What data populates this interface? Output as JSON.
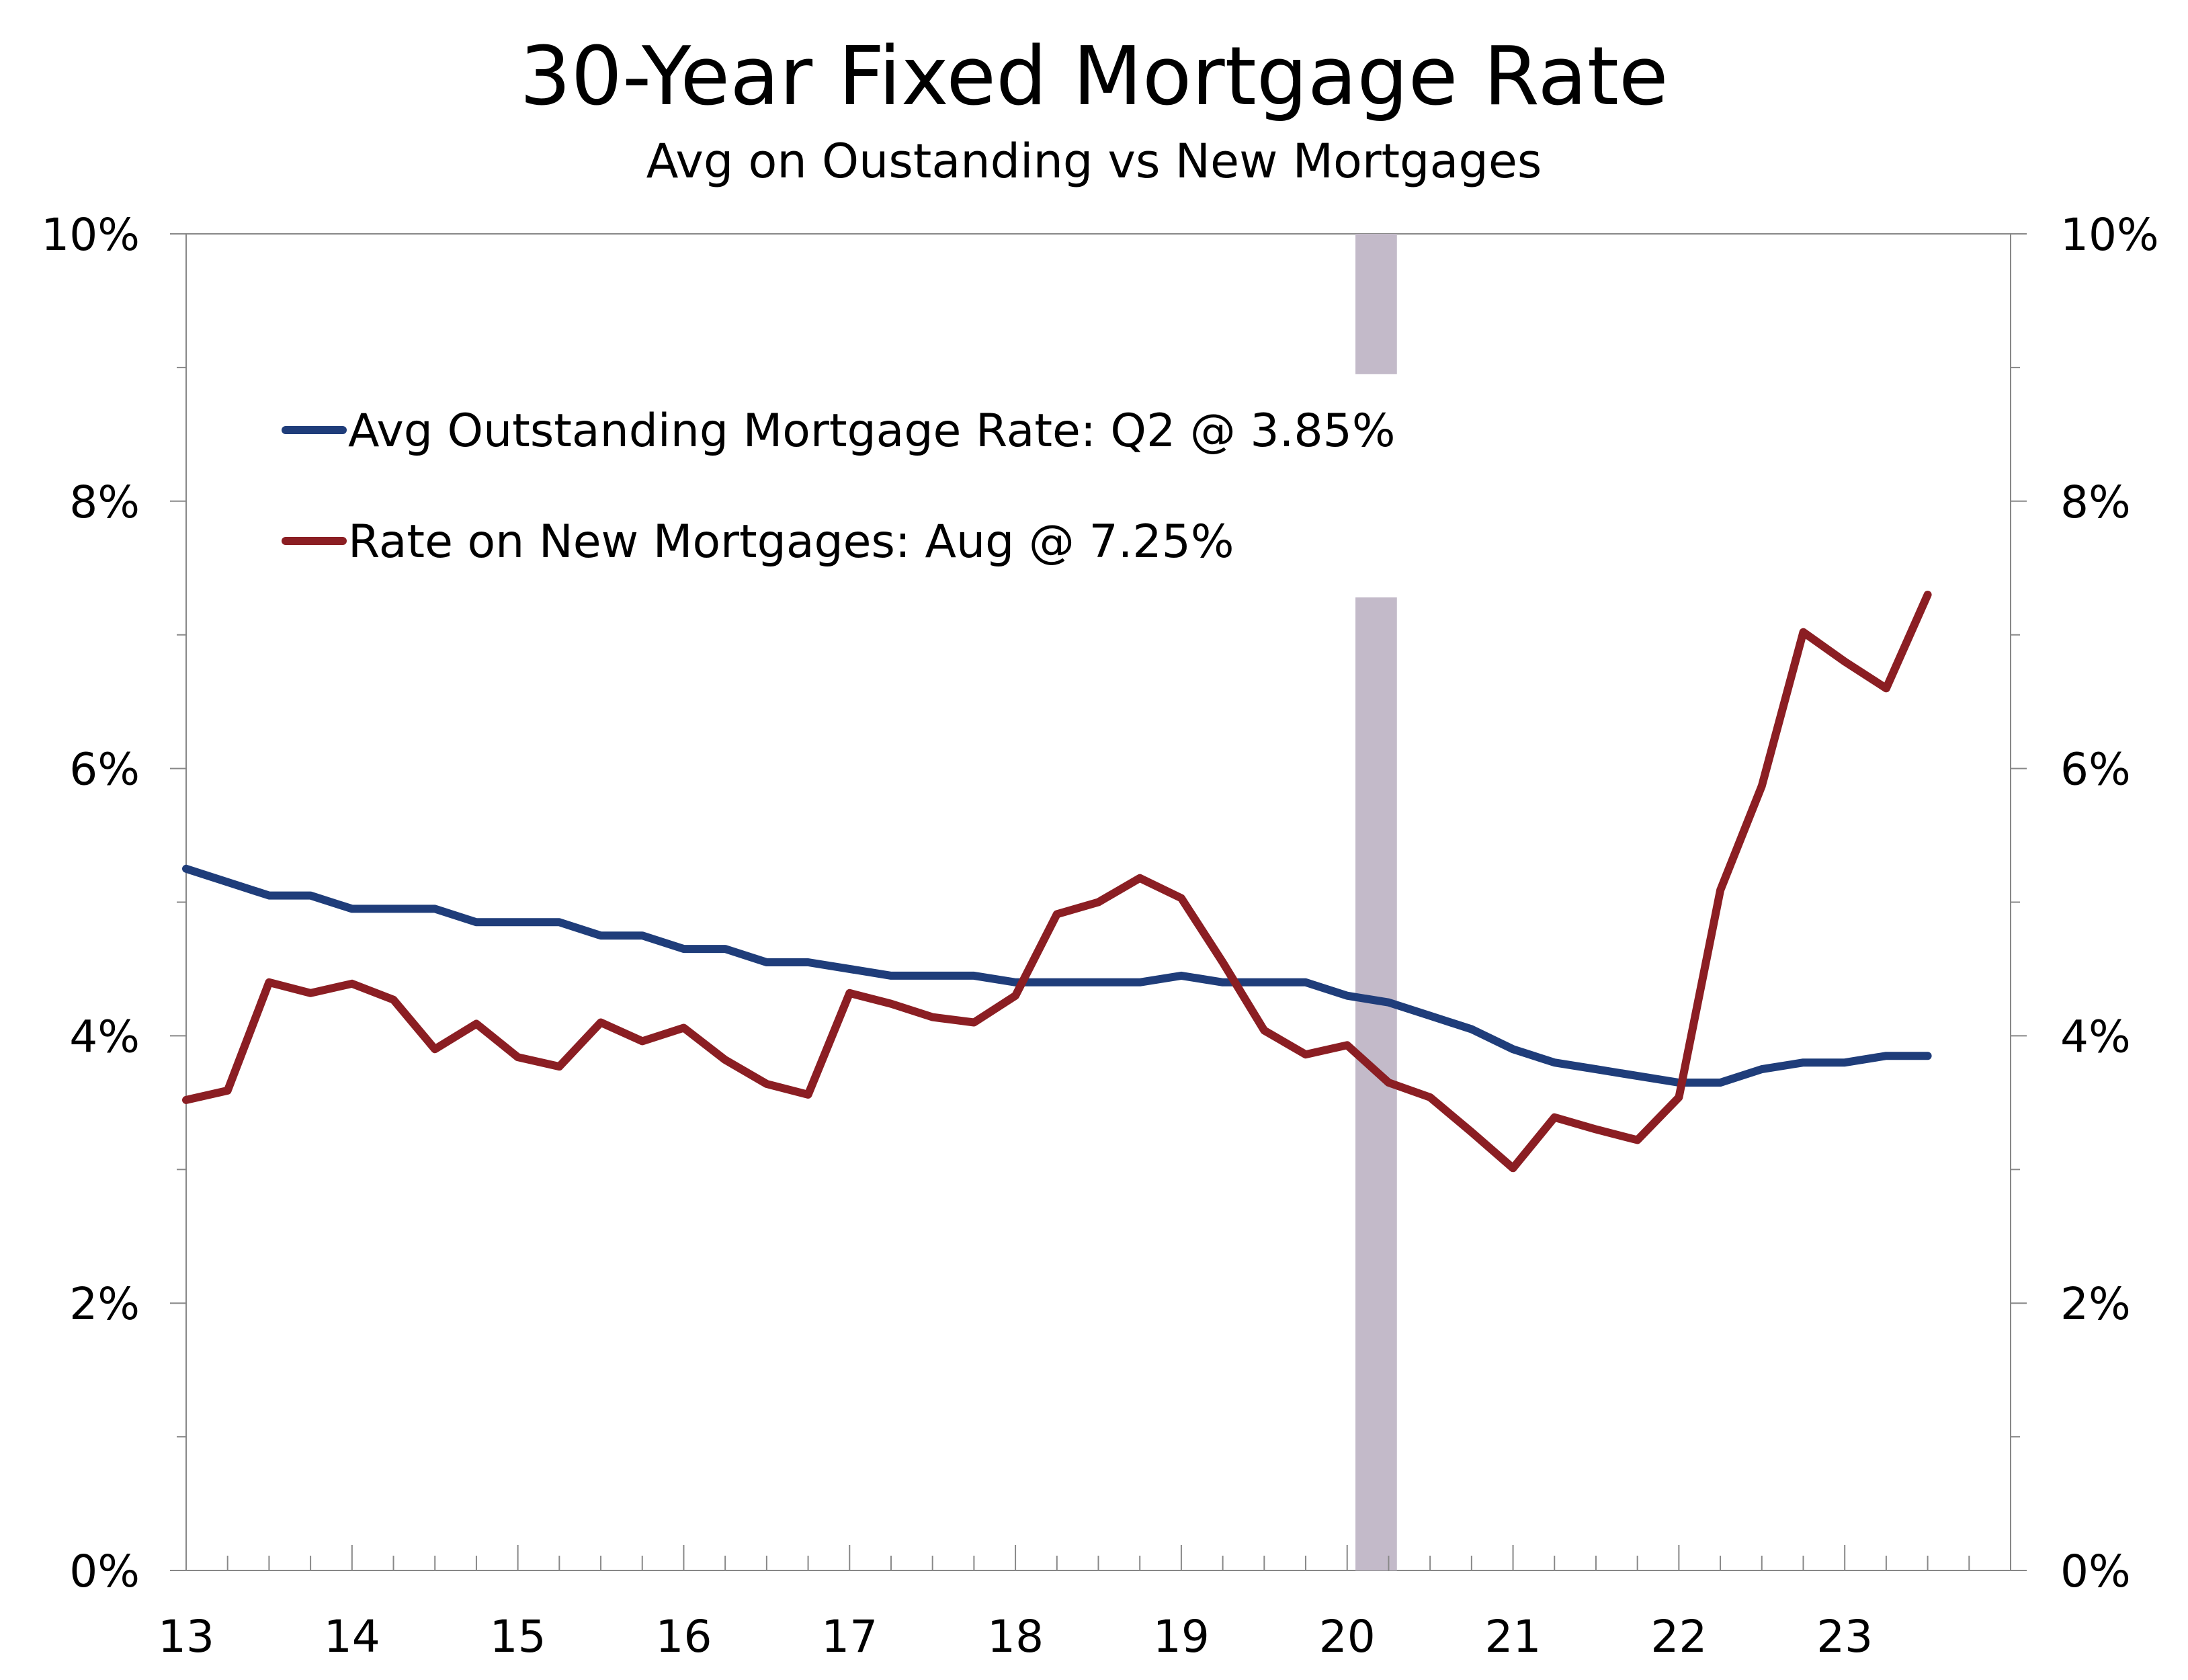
{
  "chart_data": {
    "type": "line",
    "title": "30-Year Fixed Mortgage Rate",
    "subtitle": "Avg on Oustanding vs New Mortgages",
    "x_range": [
      13,
      24
    ],
    "ylim": [
      0,
      10
    ],
    "y_ticks": [
      0,
      2,
      4,
      6,
      8,
      10
    ],
    "y_tick_labels": [
      "0%",
      "2%",
      "4%",
      "6%",
      "8%",
      "10%"
    ],
    "x_ticks": [
      13,
      14,
      15,
      16,
      17,
      18,
      19,
      20,
      21,
      22,
      23
    ],
    "x_tick_labels": [
      "13",
      "14",
      "15",
      "16",
      "17",
      "18",
      "19",
      "20",
      "21",
      "22",
      "23"
    ],
    "recession_band": [
      20.05,
      20.3
    ],
    "grid": false,
    "legend_position": "upper-left",
    "series": [
      {
        "name": "Avg Outstanding Mortgage Rate: Q2 @ 3.85%",
        "color": "#1f3d7a",
        "x": [
          13.0,
          13.25,
          13.5,
          13.75,
          14.0,
          14.25,
          14.5,
          14.75,
          15.0,
          15.25,
          15.5,
          15.75,
          16.0,
          16.25,
          16.5,
          16.75,
          17.0,
          17.25,
          17.5,
          17.75,
          18.0,
          18.25,
          18.5,
          18.75,
          19.0,
          19.25,
          19.5,
          19.75,
          20.0,
          20.25,
          20.5,
          20.75,
          21.0,
          21.25,
          21.5,
          21.75,
          22.0,
          22.25,
          22.5,
          22.75,
          23.0,
          23.25,
          23.5
        ],
        "y": [
          5.25,
          5.15,
          5.05,
          5.05,
          4.95,
          4.95,
          4.95,
          4.85,
          4.85,
          4.85,
          4.75,
          4.75,
          4.65,
          4.65,
          4.55,
          4.55,
          4.5,
          4.45,
          4.45,
          4.45,
          4.4,
          4.4,
          4.4,
          4.4,
          4.45,
          4.4,
          4.4,
          4.4,
          4.3,
          4.25,
          4.15,
          4.05,
          3.9,
          3.8,
          3.75,
          3.7,
          3.65,
          3.65,
          3.75,
          3.8,
          3.8,
          3.85,
          3.85
        ]
      },
      {
        "name": "Rate on New Mortgages: Aug @ 7.25%",
        "color": "#8b1e23",
        "x": [
          13.0,
          13.25,
          13.5,
          13.75,
          14.0,
          14.25,
          14.5,
          14.75,
          15.0,
          15.25,
          15.5,
          15.75,
          16.0,
          16.25,
          16.5,
          16.75,
          17.0,
          17.25,
          17.5,
          17.75,
          18.0,
          18.25,
          18.5,
          18.75,
          19.0,
          19.25,
          19.5,
          19.75,
          20.0,
          20.25,
          20.5,
          20.75,
          21.0,
          21.25,
          21.5,
          21.75,
          22.0,
          22.25,
          22.5,
          22.75,
          23.0,
          23.25,
          23.5
        ],
        "y": [
          3.52,
          3.59,
          4.4,
          4.32,
          4.39,
          4.27,
          3.9,
          4.09,
          3.84,
          3.77,
          4.1,
          3.96,
          4.06,
          3.82,
          3.64,
          3.56,
          4.32,
          4.24,
          4.14,
          4.1,
          4.3,
          4.91,
          5.0,
          5.18,
          5.03,
          4.55,
          4.04,
          3.86,
          3.93,
          3.65,
          3.54,
          3.28,
          3.01,
          3.39,
          3.3,
          3.22,
          3.54,
          5.09,
          5.87,
          7.02,
          6.8,
          6.6,
          7.3
        ]
      }
    ]
  }
}
